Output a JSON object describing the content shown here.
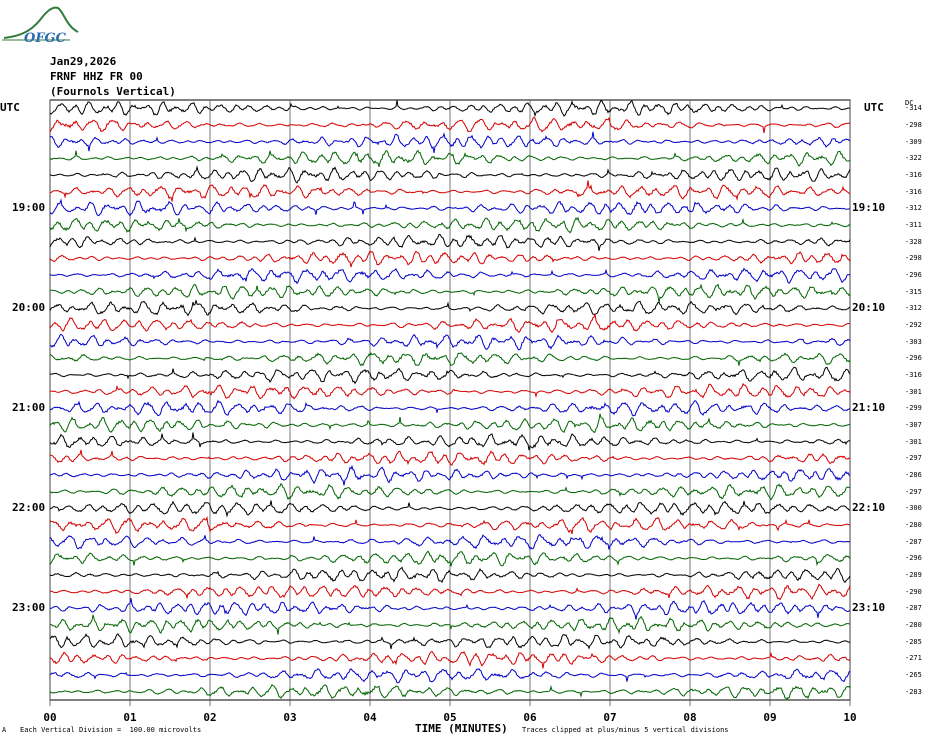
{
  "logo": {
    "text": "OFGC"
  },
  "header": {
    "date": "Jan29,2026",
    "station": "FRNF HHZ FR 00",
    "location": "(Fournols Vertical)"
  },
  "axis": {
    "utc_left": "UTC",
    "utc_right": "UTC",
    "dc_header": "DC",
    "xlabel": "TIME (MINUTES)",
    "xticks": [
      "00",
      "01",
      "02",
      "03",
      "04",
      "05",
      "06",
      "07",
      "08",
      "09",
      "10"
    ]
  },
  "footer": {
    "division": "Each Vertical Division =  100.00 microvolts",
    "clipping": "Traces clipped at plus/minus 5 vertical divisions",
    "corner_mark": "A"
  },
  "colors": {
    "cycle": [
      "#000000",
      "#d40000",
      "#0000c8",
      "#006400"
    ]
  },
  "chart_data": {
    "type": "line",
    "description_type": "helicorder",
    "x_range_minutes": [
      0,
      10
    ],
    "traces_per_hour": 6,
    "left_time_labels": [
      {
        "row": 6,
        "text": "19:00"
      },
      {
        "row": 12,
        "text": "20:00"
      },
      {
        "row": 18,
        "text": "21:00"
      },
      {
        "row": 24,
        "text": "22:00"
      },
      {
        "row": 30,
        "text": "23:00"
      }
    ],
    "right_time_labels": [
      {
        "row": 6,
        "text": "19:10"
      },
      {
        "row": 12,
        "text": "20:10"
      },
      {
        "row": 18,
        "text": "21:10"
      },
      {
        "row": 24,
        "text": "22:10"
      },
      {
        "row": 30,
        "text": "23:10"
      }
    ],
    "dc_offsets": [
      "-314",
      "-298",
      "-309",
      "-322",
      "-316",
      "-316",
      "-312",
      "-311",
      "-328",
      "-298",
      "-296",
      "-315",
      "-312",
      "-292",
      "-303",
      "-296",
      "-316",
      "-301",
      "-299",
      "-307",
      "-301",
      "-297",
      "-286",
      "-297",
      "-300",
      "-280",
      "-287",
      "-296",
      "-289",
      "-290",
      "-287",
      "-280",
      "-285",
      "-271",
      "-265",
      "-283"
    ]
  }
}
